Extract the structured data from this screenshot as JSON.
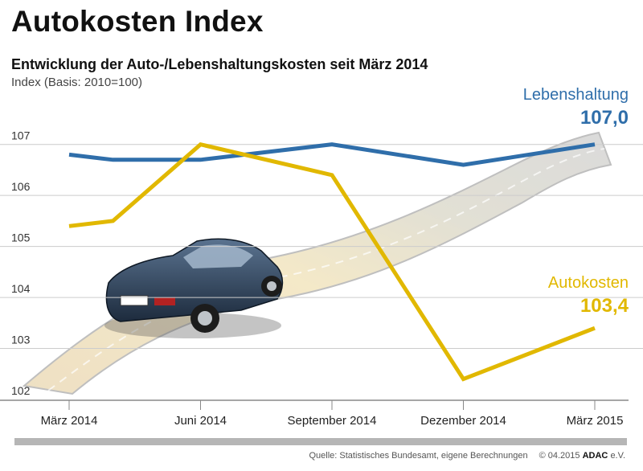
{
  "header": {
    "title": "Autokosten Index",
    "subtitle": "Entwicklung der Auto-/Lebenshaltungskosten seit März 2014",
    "index_note": "Index (Basis: 2010=100)"
  },
  "footer": {
    "source": "Quelle: Statistisches Bundesamt, eigene Berechnungen",
    "copyright": "© 04.2015",
    "brand": "ADAC",
    "brand_suffix": "e.V."
  },
  "colors": {
    "lebenshaltung": "#2f6eaa",
    "autokosten": "#e1b800",
    "grid": "#cccccc",
    "axis": "#888888"
  },
  "chart_data": {
    "type": "line",
    "title": "Entwicklung der Auto-/Lebenshaltungskosten seit März 2014",
    "ylabel": "Index (Basis: 2010=100)",
    "x": [
      "2014-03",
      "2014-04",
      "2014-05",
      "2014-06",
      "2014-07",
      "2014-08",
      "2014-09",
      "2014-10",
      "2014-11",
      "2014-12",
      "2015-01",
      "2015-02",
      "2015-03"
    ],
    "ylim": [
      102,
      107.5
    ],
    "yticks": [
      102,
      103,
      104,
      105,
      106,
      107
    ],
    "xtick_labels": [
      {
        "x": "2014-03",
        "label": "März 2014"
      },
      {
        "x": "2014-06",
        "label": "Juni 2014"
      },
      {
        "x": "2014-09",
        "label": "September 2014"
      },
      {
        "x": "2014-12",
        "label": "Dezember 2014"
      },
      {
        "x": "2015-03",
        "label": "März 2015"
      }
    ],
    "grid": true,
    "series": [
      {
        "name": "Lebenshaltung",
        "color": "#2f6eaa",
        "values": [
          106.8,
          106.7,
          null,
          106.7,
          null,
          null,
          107.0,
          null,
          null,
          106.6,
          null,
          null,
          107.0
        ],
        "end_label": "107,0"
      },
      {
        "name": "Autokosten",
        "color": "#e1b800",
        "values": [
          105.4,
          105.5,
          null,
          107.0,
          null,
          null,
          106.4,
          null,
          null,
          102.4,
          null,
          null,
          103.4
        ],
        "end_label": "103,4"
      }
    ]
  }
}
